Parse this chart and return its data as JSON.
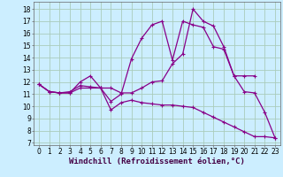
{
  "background_color": "#cceeff",
  "grid_color": "#aaccbb",
  "line_color": "#880088",
  "marker": "+",
  "markersize": 3,
  "linewidth": 0.9,
  "xlabel": "Windchill (Refroidissement éolien,°C)",
  "xlabel_fontsize": 6.5,
  "tick_fontsize": 5.5,
  "xlim": [
    -0.5,
    23.5
  ],
  "ylim": [
    6.8,
    18.6
  ],
  "yticks": [
    7,
    8,
    9,
    10,
    11,
    12,
    13,
    14,
    15,
    16,
    17,
    18
  ],
  "xticks": [
    0,
    1,
    2,
    3,
    4,
    5,
    6,
    7,
    8,
    9,
    10,
    11,
    12,
    13,
    14,
    15,
    16,
    17,
    18,
    19,
    20,
    21,
    22,
    23
  ],
  "series": [
    {
      "x": [
        0,
        1,
        2,
        3,
        4,
        5,
        6,
        7,
        8,
        9,
        10,
        11,
        12,
        13,
        14,
        15,
        16,
        17,
        18,
        19,
        20,
        21,
        22,
        23
      ],
      "y": [
        11.8,
        11.2,
        11.1,
        11.1,
        11.5,
        11.5,
        11.5,
        9.7,
        10.3,
        10.5,
        10.3,
        10.2,
        10.1,
        10.1,
        10.0,
        9.9,
        9.5,
        9.1,
        8.7,
        8.3,
        7.9,
        7.5,
        7.5,
        7.4
      ]
    },
    {
      "x": [
        0,
        1,
        2,
        3,
        4,
        5,
        6,
        7,
        8,
        9,
        10,
        11,
        12,
        13,
        14,
        15,
        16,
        17,
        18,
        19,
        20,
        21
      ],
      "y": [
        11.8,
        11.2,
        11.1,
        11.2,
        11.7,
        11.6,
        11.5,
        10.4,
        11.0,
        13.9,
        15.6,
        16.7,
        17.0,
        13.8,
        17.0,
        16.7,
        16.5,
        14.9,
        14.7,
        12.5,
        12.5,
        12.5
      ]
    },
    {
      "x": [
        0,
        1,
        2,
        3,
        4,
        5,
        6,
        7,
        8,
        9,
        10,
        11,
        12,
        13,
        14,
        15,
        16,
        17,
        18,
        19,
        20,
        21,
        22,
        23
      ],
      "y": [
        11.8,
        11.2,
        11.1,
        11.1,
        12.0,
        12.5,
        11.5,
        11.5,
        11.1,
        11.1,
        11.5,
        12.0,
        12.1,
        13.5,
        14.3,
        18.0,
        17.0,
        16.6,
        14.9,
        12.5,
        11.2,
        11.1,
        9.5,
        7.4
      ]
    }
  ]
}
